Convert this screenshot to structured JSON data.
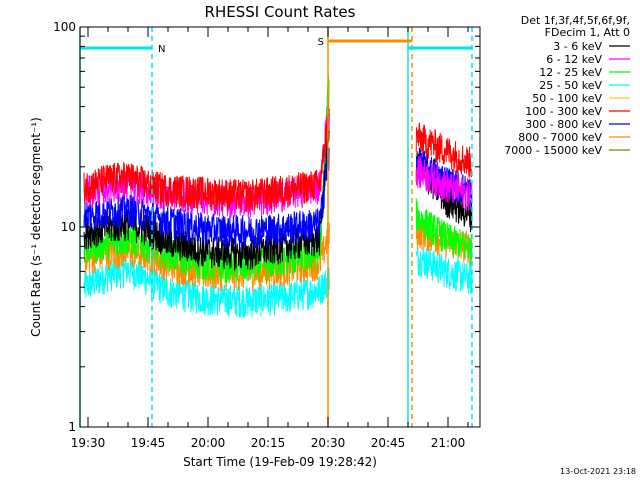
{
  "chart_data": {
    "type": "line",
    "title": "RHESSI Count Rates",
    "xlabel": "Start Time (19-Feb-09 19:28:42)",
    "ylabel": "Count Rate (s⁻¹ detector segment⁻¹)",
    "y_scale": "log",
    "ylim": [
      1,
      100
    ],
    "xlim": [
      "19:28",
      "21:08"
    ],
    "x_ticks": [
      "19:30",
      "19:45",
      "20:00",
      "20:15",
      "20:30",
      "20:45",
      "21:00"
    ],
    "y_ticks": [
      "1",
      "10",
      "100"
    ],
    "legend_header": [
      "Det 1f,3f,4f,5f,6f,9f,",
      "FDecim 1, Att 0"
    ],
    "legend_placement": "right",
    "timestamp": "13-Oct-2021 23:18",
    "data_gap": [
      "20:30",
      "20:52"
    ],
    "series": [
      {
        "name": "3 - 6 keV",
        "color": "#000000",
        "x": [
          "19:29",
          "19:35",
          "19:40",
          "19:45",
          "19:50",
          "20:00",
          "20:10",
          "20:20",
          "20:28",
          "20:30",
          "20:53",
          "21:00",
          "21:06"
        ],
        "y": [
          9.5,
          10,
          10.5,
          9.8,
          8.5,
          7.6,
          7.4,
          8.2,
          8.8,
          30,
          20,
          13.5,
          11.5
        ]
      },
      {
        "name": "6 - 12 keV",
        "color": "#ff00ff",
        "x": [
          "19:29",
          "19:35",
          "19:40",
          "19:45",
          "19:50",
          "20:00",
          "20:10",
          "20:20",
          "20:28",
          "20:30",
          "20:53",
          "21:00",
          "21:06"
        ],
        "y": [
          15,
          16,
          16.5,
          15.5,
          14.8,
          14,
          13.5,
          14.8,
          16,
          38,
          19,
          16,
          14.5
        ]
      },
      {
        "name": "12 - 25 keV",
        "color": "#00ff00",
        "x": [
          "19:29",
          "19:35",
          "19:40",
          "19:45",
          "19:50",
          "20:00",
          "20:10",
          "20:20",
          "20:28",
          "20:30",
          "20:53",
          "21:00",
          "21:06"
        ],
        "y": [
          7.8,
          8.4,
          8.8,
          8.2,
          7.4,
          6.5,
          6.4,
          6.9,
          7.4,
          50,
          11,
          8.8,
          7.8
        ]
      },
      {
        "name": "25 - 50 keV",
        "color": "#00ffff",
        "x": [
          "19:29",
          "19:35",
          "19:40",
          "19:45",
          "19:50",
          "20:00",
          "20:10",
          "20:20",
          "20:28",
          "20:30",
          "20:53",
          "21:00",
          "21:06"
        ],
        "y": [
          5.0,
          5.8,
          6.2,
          5.5,
          4.8,
          4.4,
          4.3,
          4.5,
          4.9,
          5.5,
          7.0,
          6.0,
          5.5
        ]
      },
      {
        "name": "50 - 100 keV",
        "color": "#ffd700",
        "x": [],
        "y": []
      },
      {
        "name": "100 - 300 keV",
        "color": "#ff0000",
        "x": [
          "19:29",
          "19:35",
          "19:40",
          "19:45",
          "19:50",
          "20:00",
          "20:10",
          "20:20",
          "20:28",
          "20:30",
          "20:53",
          "21:00",
          "21:06"
        ],
        "y": [
          16,
          17.5,
          18,
          16.5,
          15.5,
          15,
          14.5,
          15.5,
          16.5,
          35,
          28,
          24,
          21
        ]
      },
      {
        "name": "300 - 800 keV",
        "color": "#0000ff",
        "x": [
          "19:29",
          "19:35",
          "19:40",
          "19:45",
          "19:50",
          "20:00",
          "20:10",
          "20:20",
          "20:28",
          "20:30",
          "20:53",
          "21:00",
          "21:06"
        ],
        "y": [
          11.5,
          12,
          12.5,
          11.5,
          10.8,
          9.8,
          9.6,
          10,
          10.5,
          22,
          21,
          17,
          15
        ]
      },
      {
        "name": "800 - 7000 keV",
        "color": "#ff8c00",
        "x": [
          "19:29",
          "19:35",
          "19:40",
          "19:45",
          "19:50",
          "20:00",
          "20:10",
          "20:20",
          "20:28",
          "20:30",
          "20:53",
          "21:00",
          "21:06"
        ],
        "y": [
          7.0,
          7.5,
          7.6,
          7.3,
          6.5,
          5.9,
          5.9,
          6.2,
          6.7,
          9,
          9.5,
          8.5,
          8.0
        ]
      },
      {
        "name": "7000 - 15000 keV",
        "color": "#808000",
        "x": [],
        "y": []
      }
    ],
    "attenuator_bars": [
      {
        "label": "N",
        "color": "#00e5ee",
        "from": "19:28",
        "to": "19:46"
      },
      {
        "label": "",
        "color": "#00e5ee",
        "from": "20:50",
        "to": "21:06"
      },
      {
        "label": "S",
        "color": "#ff8c00",
        "from": "20:30",
        "to": "20:51"
      }
    ],
    "markers": [
      {
        "time": "19:28",
        "color": "#00e5ee",
        "style": "solid"
      },
      {
        "time": "19:46",
        "color": "#00e5ee",
        "style": "dashed"
      },
      {
        "time": "20:30",
        "color": "#ff8c00",
        "style": "solid"
      },
      {
        "time": "20:50",
        "color": "#00e5ee",
        "style": "solid"
      },
      {
        "time": "20:51",
        "color": "#ff8c00",
        "style": "dashed"
      },
      {
        "time": "21:06",
        "color": "#00e5ee",
        "style": "dashed"
      }
    ]
  }
}
